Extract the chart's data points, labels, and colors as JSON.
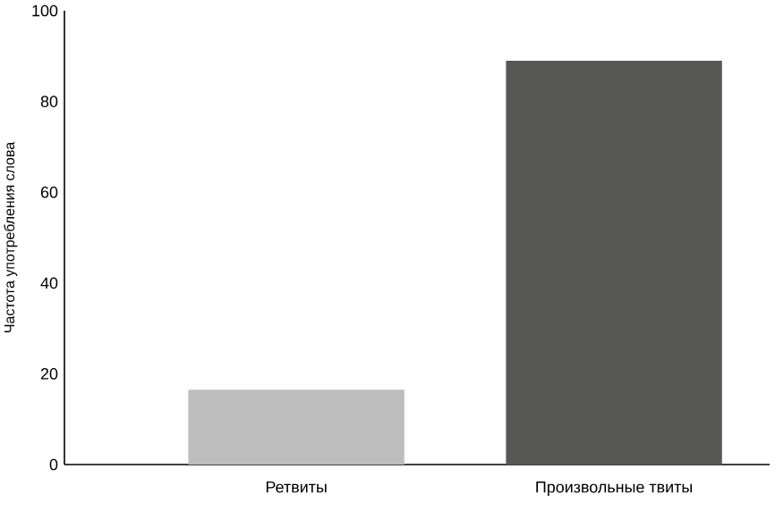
{
  "chart_data": {
    "type": "bar",
    "ylabel": "Частота употребления слова",
    "categories": [
      "Ретвиты",
      "Произвольные твиты"
    ],
    "values": [
      16.5,
      89
    ],
    "colors": [
      "#bdbdbd",
      "#575756"
    ],
    "ylim": [
      0,
      100
    ],
    "yticks": [
      0,
      20,
      40,
      60,
      80,
      100
    ]
  }
}
